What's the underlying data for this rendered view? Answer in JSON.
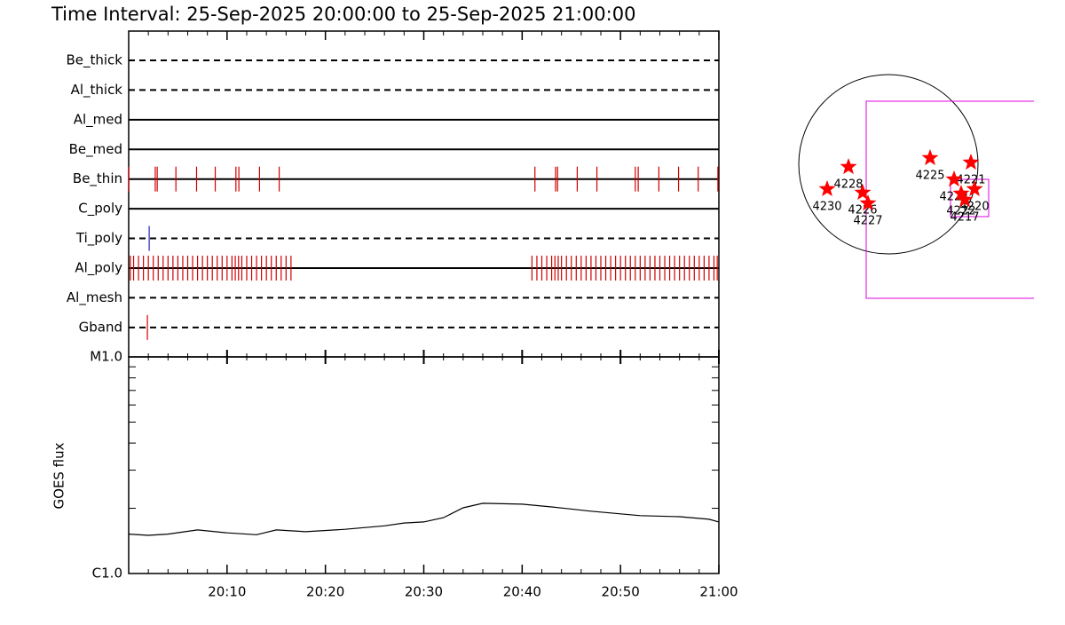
{
  "title": "Time Interval: 25-Sep-2025 20:00:00 to 25-Sep-2025 21:00:00",
  "chart_data": [
    {
      "type": "timeline",
      "xlim": [
        "20:00",
        "21:00"
      ],
      "rows": [
        {
          "name": "Be_thick",
          "line": "dashed",
          "color": "#d00000",
          "events": []
        },
        {
          "name": "Al_thick",
          "line": "dashed",
          "color": "#d00000",
          "events": []
        },
        {
          "name": "Al_med",
          "line": "solid",
          "color": "#d00000",
          "events": []
        },
        {
          "name": "Be_med",
          "line": "solid",
          "color": "#d00000",
          "events": []
        },
        {
          "name": "Be_thin",
          "line": "solid",
          "color": "#d00000",
          "events": [
            "20:00:00",
            "20:02:42",
            "20:02:54",
            "20:04:48",
            "20:06:54",
            "20:08:48",
            "20:10:54",
            "20:11:12",
            "20:13:18",
            "20:15:18",
            "20:41:18",
            "20:43:24",
            "20:43:36",
            "20:45:36",
            "20:47:36",
            "20:51:30",
            "20:51:48",
            "20:53:54",
            "20:55:54",
            "20:57:54",
            "20:59:54"
          ]
        },
        {
          "name": "C_poly",
          "line": "solid",
          "color": "#d00000",
          "events": []
        },
        {
          "name": "Ti_poly",
          "line": "dashed",
          "color": "#2020c0",
          "events": [
            "20:02:05"
          ]
        },
        {
          "name": "Al_poly",
          "line": "solid",
          "color": "#d00000",
          "events": [
            "20:00:10",
            "20:00:30",
            "20:01:00",
            "20:01:30",
            "20:02:00",
            "20:02:30",
            "20:03:00",
            "20:03:30",
            "20:04:00",
            "20:04:30",
            "20:05:00",
            "20:05:30",
            "20:06:00",
            "20:06:30",
            "20:07:00",
            "20:07:30",
            "20:08:00",
            "20:08:30",
            "20:09:00",
            "20:09:30",
            "20:10:00",
            "20:10:30",
            "20:10:50",
            "20:11:10",
            "20:11:30",
            "20:12:00",
            "20:12:30",
            "20:13:00",
            "20:13:30",
            "20:14:00",
            "20:14:30",
            "20:15:00",
            "20:15:30",
            "20:16:00",
            "20:16:30",
            "20:41:00",
            "20:41:30",
            "20:42:00",
            "20:42:30",
            "20:43:00",
            "20:43:20",
            "20:43:40",
            "20:44:00",
            "20:44:30",
            "20:45:00",
            "20:45:30",
            "20:46:00",
            "20:46:30",
            "20:47:00",
            "20:47:30",
            "20:48:00",
            "20:48:30",
            "20:49:00",
            "20:49:30",
            "20:50:00",
            "20:50:30",
            "20:51:00",
            "20:51:30",
            "20:52:00",
            "20:52:30",
            "20:53:00",
            "20:53:30",
            "20:54:00",
            "20:54:30",
            "20:55:00",
            "20:55:30",
            "20:56:00",
            "20:56:30",
            "20:57:00",
            "20:57:30",
            "20:58:00",
            "20:58:30",
            "20:59:00",
            "20:59:30",
            "20:59:50"
          ]
        },
        {
          "name": "Al_mesh",
          "line": "dashed",
          "color": "#d00000",
          "events": []
        },
        {
          "name": "Gband",
          "line": "dashed",
          "color": "#d00000",
          "events": [
            "20:01:54"
          ]
        }
      ]
    },
    {
      "type": "line",
      "ylabel": "GOES flux",
      "log": true,
      "color": "#000000",
      "xlim": [
        "20:00",
        "21:00"
      ],
      "xticks": [
        "20:10",
        "20:20",
        "20:30",
        "20:40",
        "20:50",
        "21:00"
      ],
      "xminorticks": [
        "20:02",
        "20:04",
        "20:06",
        "20:08",
        "20:12",
        "20:14",
        "20:16",
        "20:18",
        "20:22",
        "20:24",
        "20:26",
        "20:28",
        "20:32",
        "20:34",
        "20:36",
        "20:38",
        "20:42",
        "20:44",
        "20:46",
        "20:48",
        "20:52",
        "20:54",
        "20:56",
        "20:58"
      ],
      "ylim": [
        1e-06,
        1e-05
      ],
      "yticks": [
        {
          "value": 1e-06,
          "label": "C1.0"
        },
        {
          "value": 1e-05,
          "label": "M1.0"
        }
      ],
      "yminorticks": [
        2e-06,
        3e-06,
        4e-06,
        5e-06,
        6e-06,
        7e-06,
        8e-06,
        9e-06
      ],
      "x": [
        "20:00",
        "20:02",
        "20:04",
        "20:07",
        "20:10",
        "20:13",
        "20:15",
        "20:18",
        "20:22",
        "20:26",
        "20:28",
        "20:30",
        "20:32",
        "20:34",
        "20:36",
        "20:40",
        "20:43",
        "20:47",
        "20:52",
        "20:56",
        "20:59",
        "21:00"
      ],
      "values": [
        1.52e-06,
        1.5e-06,
        1.52e-06,
        1.59e-06,
        1.54e-06,
        1.51e-06,
        1.59e-06,
        1.56e-06,
        1.6e-06,
        1.66e-06,
        1.71e-06,
        1.73e-06,
        1.81e-06,
        2.01e-06,
        2.11e-06,
        2.09e-06,
        2.03e-06,
        1.94e-06,
        1.85e-06,
        1.83e-06,
        1.78e-06,
        1.73e-06
      ]
    },
    {
      "type": "map",
      "color": "#ff0000",
      "regions": [
        {
          "label": "4228",
          "x": -423,
          "y": -28
        },
        {
          "label": "4230",
          "x": -649,
          "y": -263
        },
        {
          "label": "4226",
          "x": -273,
          "y": -301
        },
        {
          "label": "4227",
          "x": -216,
          "y": -414
        },
        {
          "label": "4225",
          "x": 442,
          "y": 66
        },
        {
          "label": "4221",
          "x": 875,
          "y": 19
        },
        {
          "label": "4220",
          "x": 913,
          "y": -263
        },
        {
          "label": "4224",
          "x": 696,
          "y": -160
        },
        {
          "label": "4222",
          "x": 771,
          "y": -310
        },
        {
          "label": "4217",
          "x": 809,
          "y": -376
        }
      ]
    }
  ]
}
